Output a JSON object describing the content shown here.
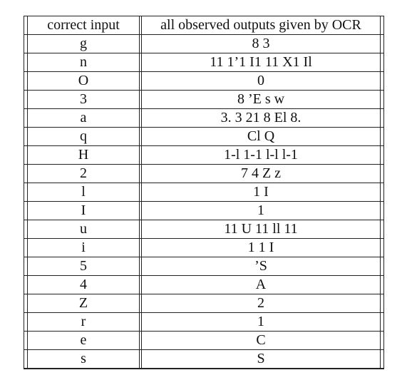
{
  "table": {
    "headers": {
      "input": "correct input",
      "output": "all observed outputs given by OCR"
    },
    "rows": [
      {
        "input": "g",
        "output": "8 3"
      },
      {
        "input": "n",
        "output": "11 1’1 I1 11 X1 Il"
      },
      {
        "input": "O",
        "output": "0"
      },
      {
        "input": "3",
        "output": "8 ’E s w"
      },
      {
        "input": "a",
        "output": "3. 3 21 8 El 8."
      },
      {
        "input": "q",
        "output": "Cl Q"
      },
      {
        "input": "H",
        "output": "1-l 1-1 l-l l-1"
      },
      {
        "input": "2",
        "output": "7 4 Z z"
      },
      {
        "input": "l",
        "output": "1 I"
      },
      {
        "input": "I",
        "output": "1"
      },
      {
        "input": "u",
        "output": "11 U 11 ll 11"
      },
      {
        "input": "i",
        "output": "1 1 I"
      },
      {
        "input": "5",
        "output": "’S"
      },
      {
        "input": "4",
        "output": "A"
      },
      {
        "input": "Z",
        "output": "2"
      },
      {
        "input": "r",
        "output": "1"
      },
      {
        "input": "e",
        "output": "C"
      },
      {
        "input": "s",
        "output": "S"
      }
    ]
  }
}
